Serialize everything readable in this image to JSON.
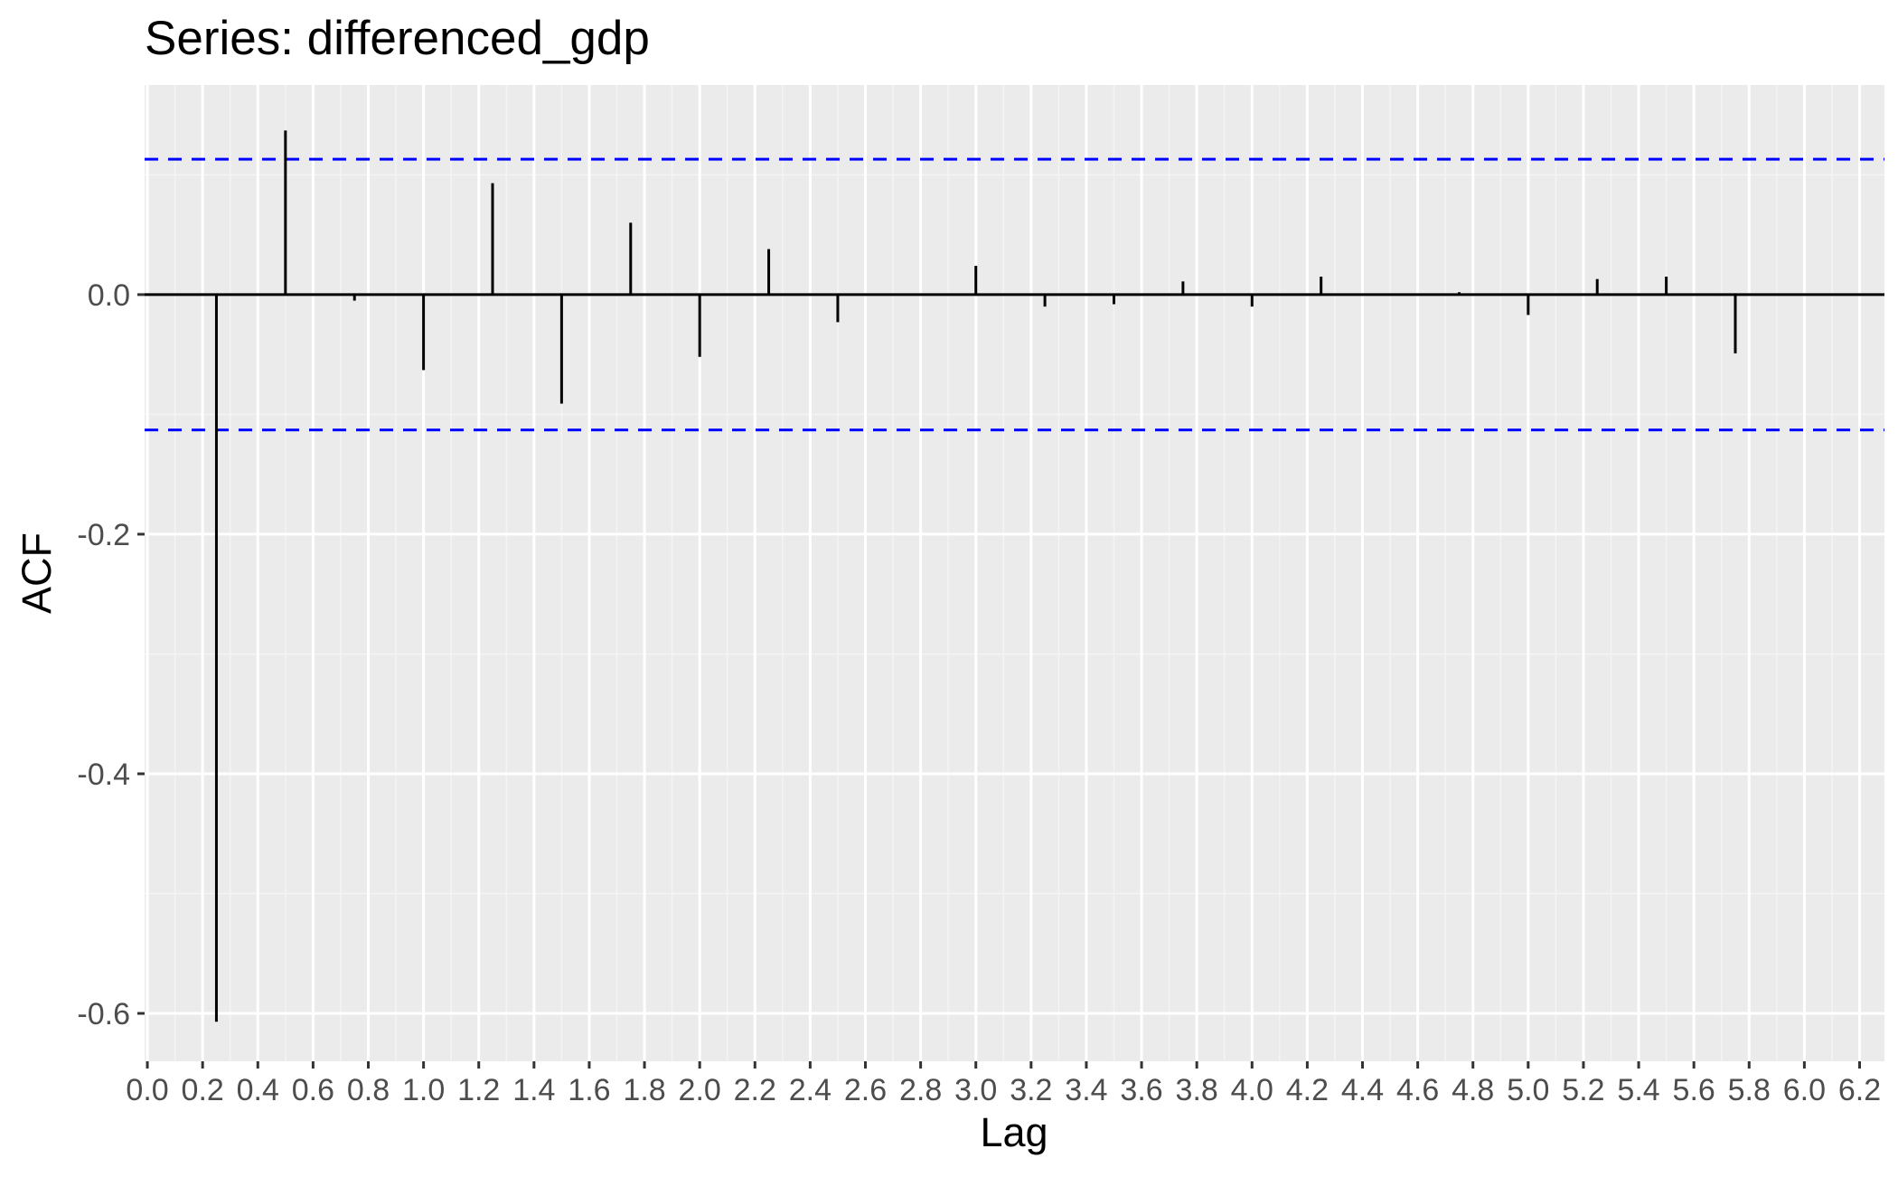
{
  "chart_data": {
    "type": "bar",
    "title": "Series: differenced_gdp",
    "xlabel": "Lag",
    "ylabel": "ACF",
    "xlim": [
      -0.01,
      6.29
    ],
    "ylim": [
      -0.64,
      0.175
    ],
    "x_ticks": [
      "0.0",
      "0.2",
      "0.4",
      "0.6",
      "0.8",
      "1.0",
      "1.2",
      "1.4",
      "1.6",
      "1.8",
      "2.0",
      "2.2",
      "2.4",
      "2.6",
      "2.8",
      "3.0",
      "3.2",
      "3.4",
      "3.6",
      "3.8",
      "4.0",
      "4.2",
      "4.4",
      "4.6",
      "4.8",
      "5.0",
      "5.2",
      "5.4",
      "5.6",
      "5.8",
      "6.0",
      "6.2"
    ],
    "y_ticks": [
      "0.0",
      "-0.2",
      "-0.4",
      "-0.6"
    ],
    "confidence_bound": 0.113,
    "grid": true,
    "background": "#ebebeb",
    "bound_color": "#0000ff",
    "lags": [
      0.25,
      0.5,
      0.75,
      1.0,
      1.25,
      1.5,
      1.75,
      2.0,
      2.25,
      2.5,
      2.75,
      3.0,
      3.25,
      3.5,
      3.75,
      4.0,
      4.25,
      4.5,
      4.75,
      5.0,
      5.25,
      5.5,
      5.75,
      6.0
    ],
    "acf": [
      -0.607,
      0.137,
      -0.005,
      -0.063,
      0.093,
      -0.091,
      0.06,
      -0.052,
      0.038,
      -0.023,
      0.0,
      0.024,
      -0.01,
      -0.008,
      0.011,
      -0.01,
      0.015,
      0.0,
      0.002,
      -0.017,
      0.013,
      0.015,
      -0.049,
      0.001
    ]
  }
}
